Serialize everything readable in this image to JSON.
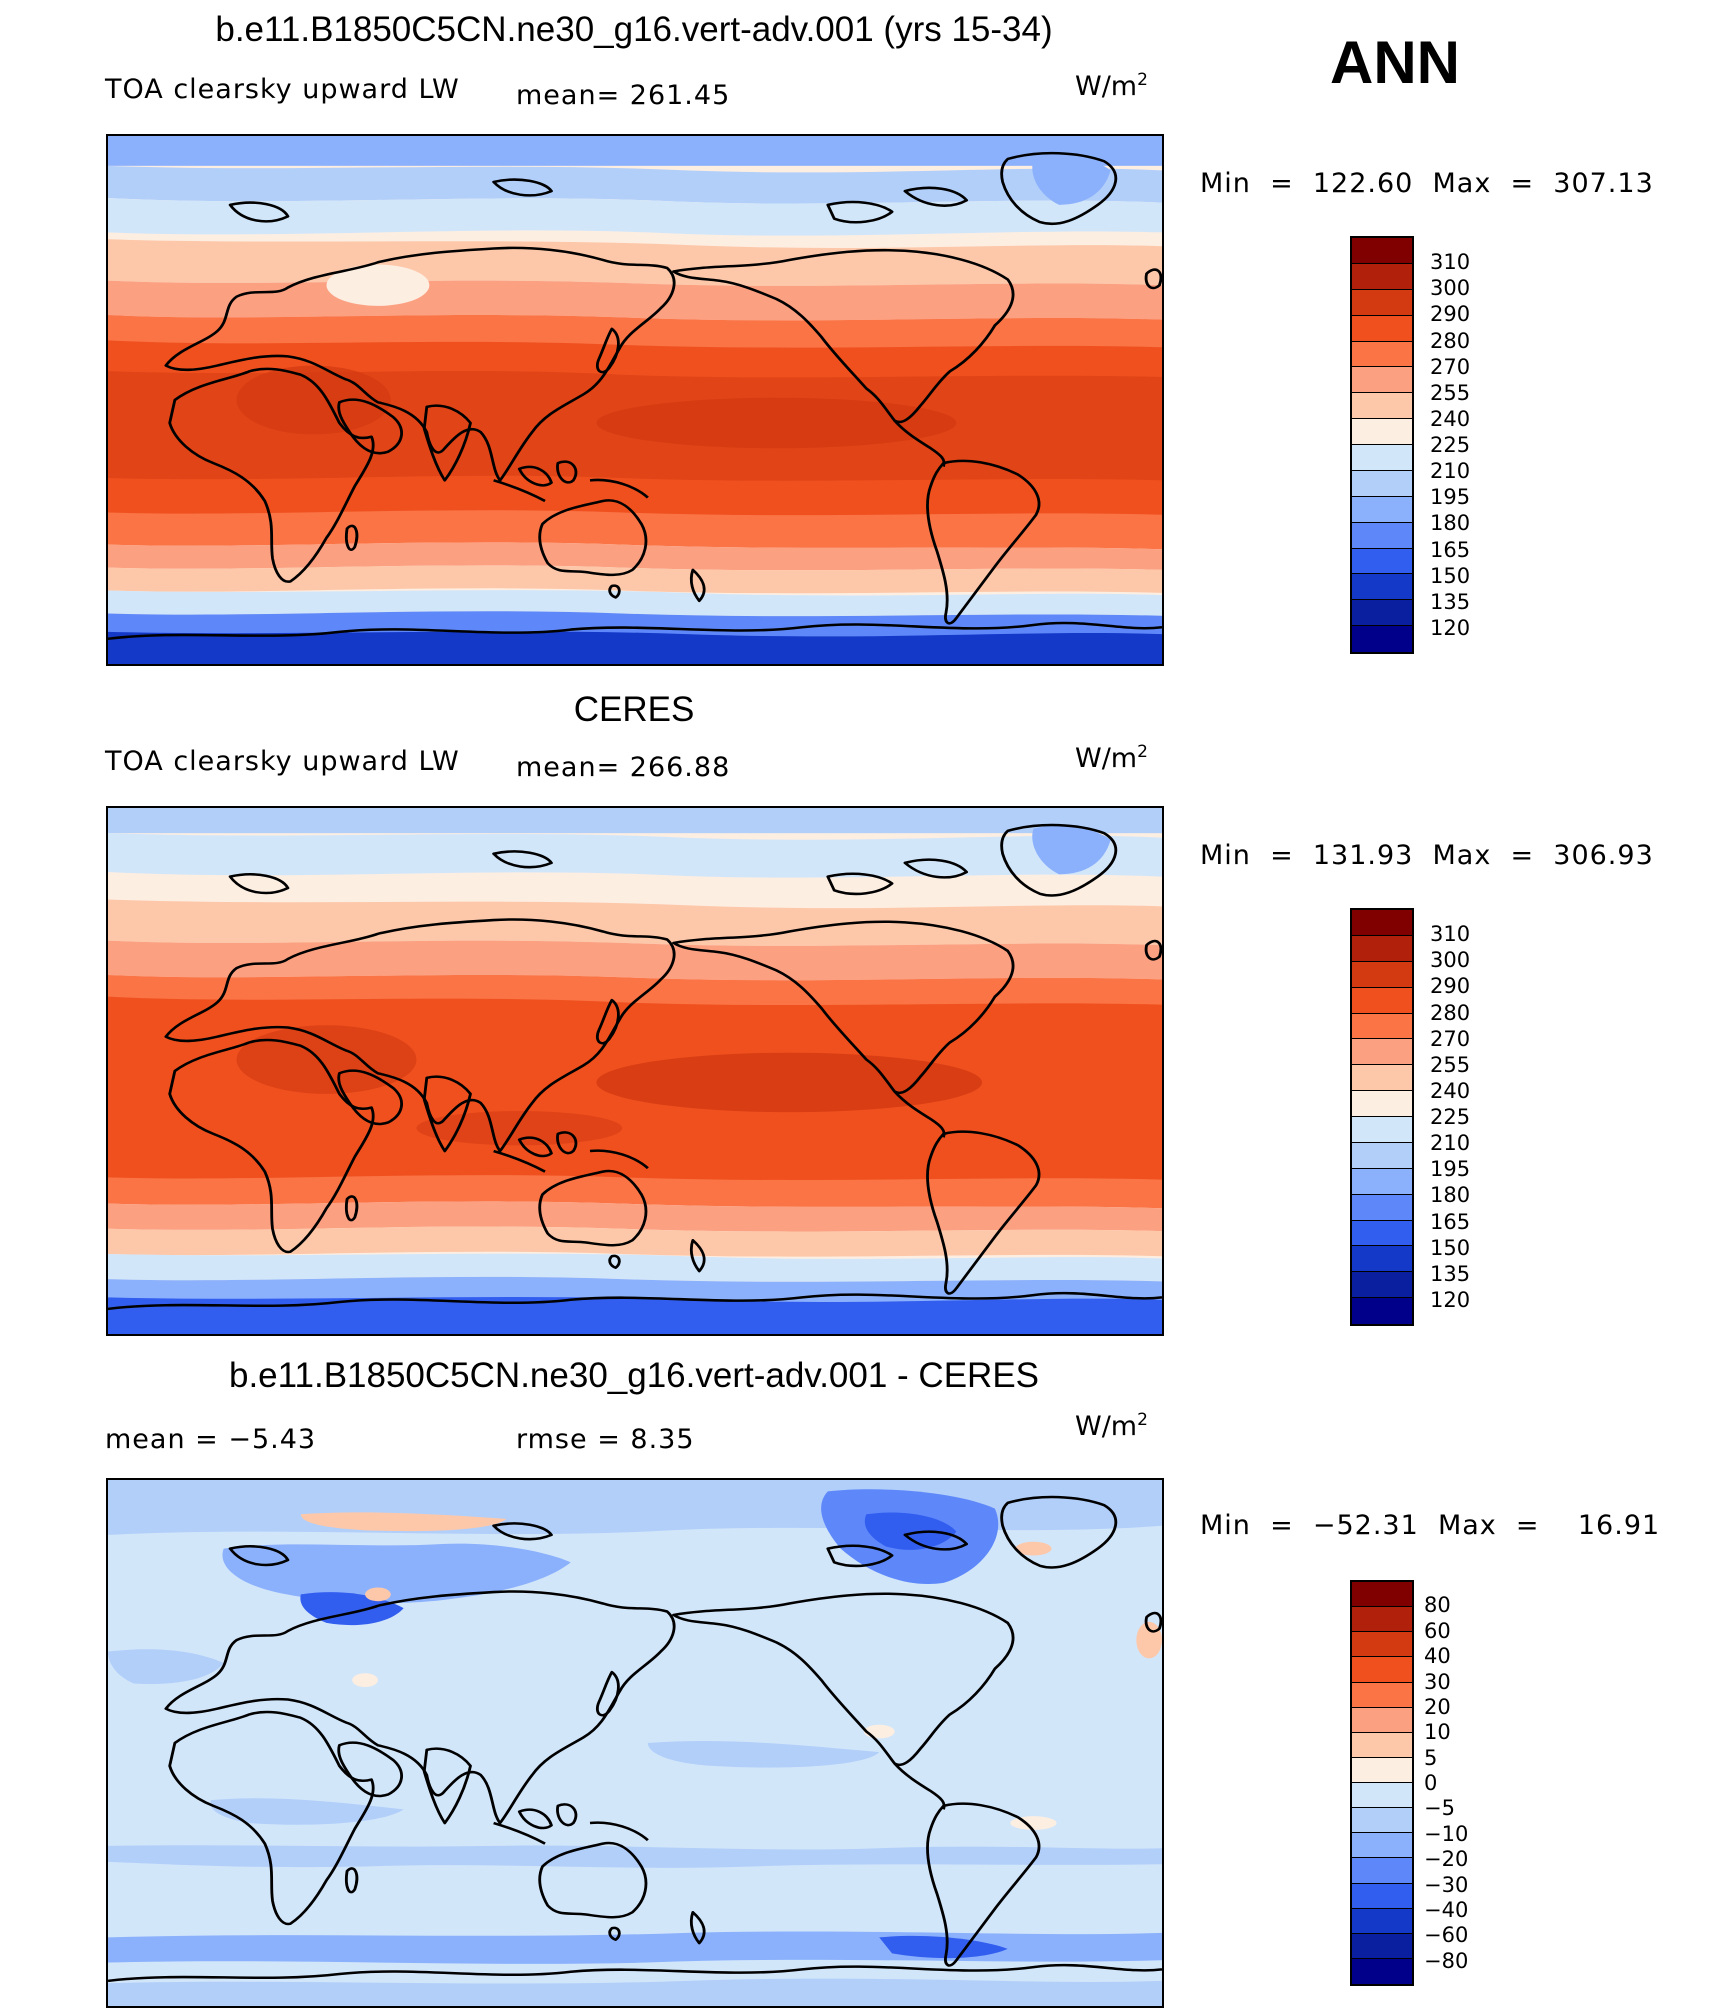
{
  "season": "ANN",
  "panels": [
    {
      "title": "b.e11.B1850C5CN.ne30_g16.vert-adv.001 (yrs 15-34)",
      "left_label": "TOA clearsky upward LW",
      "stat_label": "mean=  261.45",
      "units": "W/m",
      "units_exp": "2",
      "minmax": "Min  =  122.60  Max  =  307.13"
    },
    {
      "title": "CERES",
      "left_label": "TOA clearsky upward LW",
      "stat_label": "mean=  266.88",
      "units": "W/m",
      "units_exp": "2",
      "minmax": "Min  =  131.93  Max  =  306.93"
    },
    {
      "title": "b.e11.B1850C5CN.ne30_g16.vert-adv.001 - CERES",
      "left_label": "mean  =    −5.43",
      "stat_label": "rmse  =     8.35",
      "units": "W/m",
      "units_exp": "2",
      "minmax": "Min  =  −52.31  Max  =    16.91"
    }
  ],
  "colorbars": [
    {
      "labels": [
        "310",
        "300",
        "290",
        "280",
        "270",
        "255",
        "240",
        "225",
        "210",
        "195",
        "180",
        "165",
        "150",
        "135",
        "120"
      ],
      "colors": [
        "#800000",
        "#b0200a",
        "#d43a12",
        "#f0501e",
        "#fa7446",
        "#fca082",
        "#fdc8aa",
        "#fdeee2",
        "#d2e6fa",
        "#b2cffa",
        "#8cb1fc",
        "#5e88fa",
        "#325ef0",
        "#1438c8",
        "#0a1ea0",
        "#00008a"
      ]
    },
    {
      "labels": [
        "310",
        "300",
        "290",
        "280",
        "270",
        "255",
        "240",
        "225",
        "210",
        "195",
        "180",
        "165",
        "150",
        "135",
        "120"
      ],
      "colors": [
        "#800000",
        "#b0200a",
        "#d43a12",
        "#f0501e",
        "#fa7446",
        "#fca082",
        "#fdc8aa",
        "#fdeee2",
        "#d2e6fa",
        "#b2cffa",
        "#8cb1fc",
        "#5e88fa",
        "#325ef0",
        "#1438c8",
        "#0a1ea0",
        "#00008a"
      ]
    },
    {
      "labels": [
        "80",
        "60",
        "40",
        "30",
        "20",
        "10",
        "5",
        "0",
        "−5",
        "−10",
        "−20",
        "−30",
        "−40",
        "−60",
        "−80"
      ],
      "colors": [
        "#800000",
        "#b0200a",
        "#d43a12",
        "#f0501e",
        "#fa7446",
        "#fca082",
        "#fdc8aa",
        "#fdeee2",
        "#d2e6fa",
        "#b2cffa",
        "#8cb1fc",
        "#5e88fa",
        "#325ef0",
        "#1438c8",
        "#0a1ea0",
        "#00008a"
      ]
    }
  ]
}
